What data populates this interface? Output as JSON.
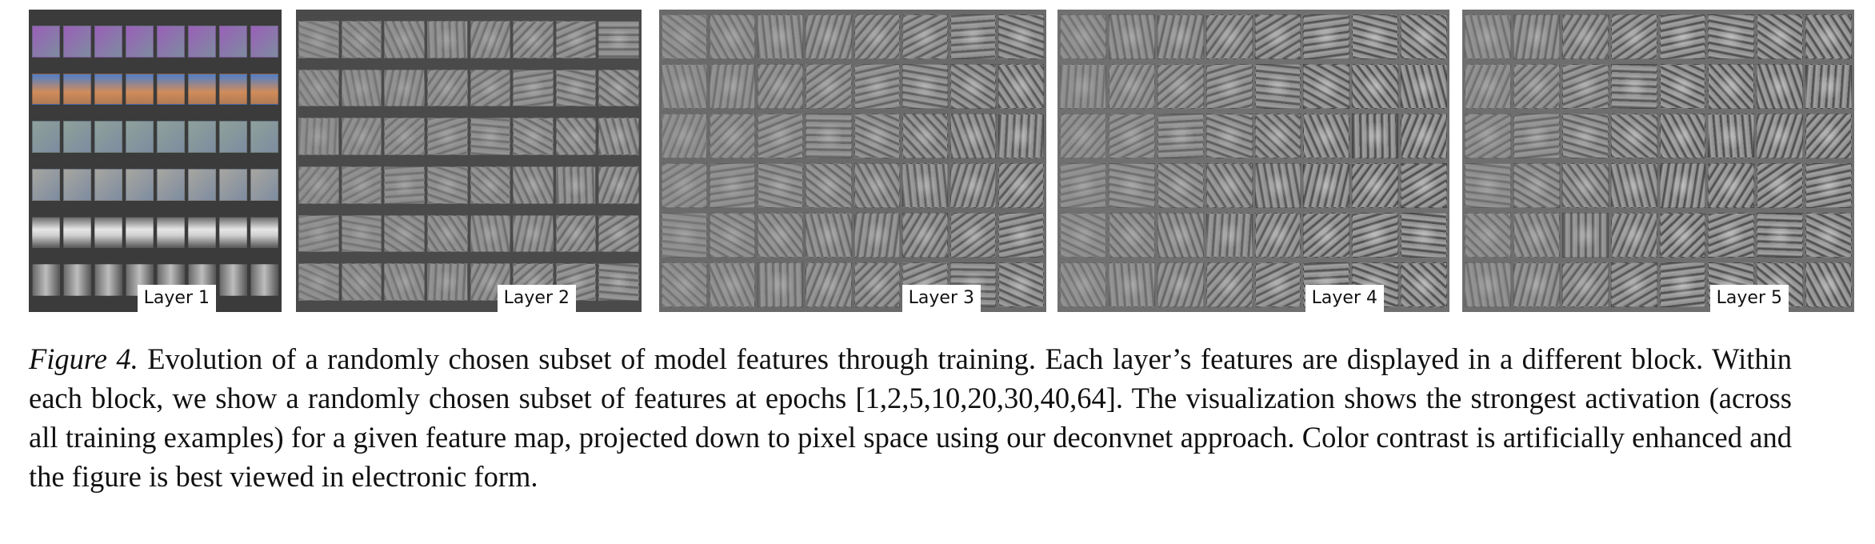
{
  "figure": {
    "panels": [
      {
        "id": "layer1",
        "label": "Layer 1",
        "rows": 6,
        "cols": 8
      },
      {
        "id": "layer2",
        "label": "Layer 2",
        "rows": 6,
        "cols": 8
      },
      {
        "id": "layer3",
        "label": "Layer 3",
        "rows": 6,
        "cols": 8
      },
      {
        "id": "layer4",
        "label": "Layer 4",
        "rows": 6,
        "cols": 8
      },
      {
        "id": "layer5",
        "label": "Layer 5",
        "rows": 6,
        "cols": 8
      }
    ],
    "colors": {
      "layer1_strip": "#2e2e2e",
      "layer1_row1": "#9a5fb8",
      "layer1_row2": "#c2876a",
      "layer1_row3": "#8fa19a",
      "layer1_row4": "#a8a6a0",
      "layer1_row5": "#d8d8d8",
      "layer1_row6": "#8a8a8a",
      "feature_gray": "#8a8a8a"
    }
  },
  "caption": {
    "label": "Figure 4.",
    "text": " Evolution of a randomly chosen subset of model features through training. Each layer’s features are displayed in a different block. Within each block, we show a randomly chosen subset of features at epochs [1,2,5,10,20,30,40,64]. The visualization shows the strongest activation (across all training examples) for a given feature map, projected down to pixel space using our deconvnet approach. Color contrast is artificially enhanced and the figure is best viewed in electronic form."
  }
}
